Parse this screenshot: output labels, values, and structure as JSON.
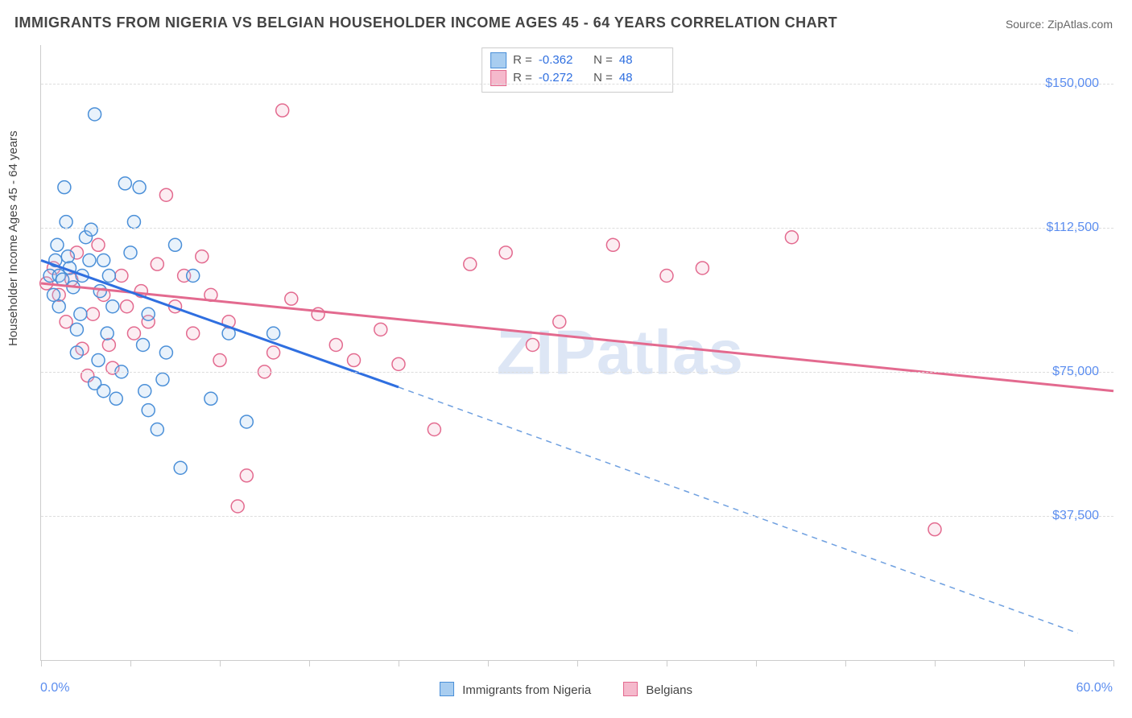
{
  "title": "IMMIGRANTS FROM NIGERIA VS BELGIAN HOUSEHOLDER INCOME AGES 45 - 64 YEARS CORRELATION CHART",
  "source": "Source: ZipAtlas.com",
  "ylabel": "Householder Income Ages 45 - 64 years",
  "watermark": "ZIPatlas",
  "chart": {
    "type": "scatter",
    "xlim": [
      0,
      60
    ],
    "ylim": [
      0,
      160000
    ],
    "x_tick_positions": [
      0,
      5,
      10,
      15,
      20,
      25,
      30,
      35,
      40,
      45,
      50,
      55,
      60
    ],
    "x_min_label": "0.0%",
    "x_max_label": "60.0%",
    "y_ticks": [
      {
        "v": 37500,
        "label": "$37,500"
      },
      {
        "v": 75000,
        "label": "$75,000"
      },
      {
        "v": 112500,
        "label": "$112,500"
      },
      {
        "v": 150000,
        "label": "$150,000"
      }
    ],
    "grid_color": "#dddddd",
    "axis_color": "#cccccc",
    "background_color": "#ffffff",
    "marker_radius": 8,
    "marker_stroke_width": 1.5,
    "marker_fill_opacity": 0.25,
    "title_fontsize": 18,
    "label_fontsize": 15,
    "tick_label_color": "#5b8def",
    "series": [
      {
        "name": "Immigrants from Nigeria",
        "color_stroke": "#4a8fd8",
        "color_fill": "#a8cdf0",
        "R": "-0.362",
        "N": "48",
        "trend": {
          "x1": 0,
          "y1": 104000,
          "x2_solid": 20,
          "y2_solid": 71000,
          "x2_dash": 58,
          "y2_dash": 7000,
          "stroke_width": 3,
          "dash_pattern": "7,6"
        },
        "points": [
          [
            0.5,
            100000
          ],
          [
            0.7,
            95000
          ],
          [
            0.8,
            104000
          ],
          [
            0.9,
            108000
          ],
          [
            1.0,
            92000
          ],
          [
            1.0,
            100000
          ],
          [
            1.2,
            99000
          ],
          [
            1.3,
            123000
          ],
          [
            1.4,
            114000
          ],
          [
            1.5,
            105000
          ],
          [
            1.6,
            102000
          ],
          [
            1.8,
            97000
          ],
          [
            2.0,
            86000
          ],
          [
            2.0,
            80000
          ],
          [
            2.2,
            90000
          ],
          [
            2.3,
            100000
          ],
          [
            2.5,
            110000
          ],
          [
            2.7,
            104000
          ],
          [
            2.8,
            112000
          ],
          [
            3.0,
            142000
          ],
          [
            3.0,
            72000
          ],
          [
            3.2,
            78000
          ],
          [
            3.3,
            96000
          ],
          [
            3.5,
            104000
          ],
          [
            3.5,
            70000
          ],
          [
            3.7,
            85000
          ],
          [
            3.8,
            100000
          ],
          [
            4.0,
            92000
          ],
          [
            4.2,
            68000
          ],
          [
            4.5,
            75000
          ],
          [
            4.7,
            124000
          ],
          [
            5.0,
            106000
          ],
          [
            5.2,
            114000
          ],
          [
            5.5,
            123000
          ],
          [
            5.7,
            82000
          ],
          [
            5.8,
            70000
          ],
          [
            6.0,
            65000
          ],
          [
            6.0,
            90000
          ],
          [
            6.5,
            60000
          ],
          [
            6.8,
            73000
          ],
          [
            7.0,
            80000
          ],
          [
            7.5,
            108000
          ],
          [
            7.8,
            50000
          ],
          [
            8.5,
            100000
          ],
          [
            9.5,
            68000
          ],
          [
            10.5,
            85000
          ],
          [
            11.5,
            62000
          ],
          [
            13.0,
            85000
          ]
        ]
      },
      {
        "name": "Belgians",
        "color_stroke": "#e36a8f",
        "color_fill": "#f5b9cc",
        "R": "-0.272",
        "N": "48",
        "trend": {
          "x1": 0,
          "y1": 98000,
          "x2_solid": 60,
          "y2_solid": 70000,
          "x2_dash": 60,
          "y2_dash": 70000,
          "stroke_width": 3,
          "dash_pattern": ""
        },
        "points": [
          [
            0.3,
            98000
          ],
          [
            0.7,
            102000
          ],
          [
            1.0,
            95000
          ],
          [
            1.4,
            88000
          ],
          [
            1.7,
            99000
          ],
          [
            2.0,
            106000
          ],
          [
            2.3,
            81000
          ],
          [
            2.6,
            74000
          ],
          [
            2.9,
            90000
          ],
          [
            3.2,
            108000
          ],
          [
            3.5,
            95000
          ],
          [
            3.8,
            82000
          ],
          [
            4.0,
            76000
          ],
          [
            4.5,
            100000
          ],
          [
            4.8,
            92000
          ],
          [
            5.2,
            85000
          ],
          [
            5.6,
            96000
          ],
          [
            6.0,
            88000
          ],
          [
            6.5,
            103000
          ],
          [
            7.0,
            121000
          ],
          [
            7.5,
            92000
          ],
          [
            8.0,
            100000
          ],
          [
            8.5,
            85000
          ],
          [
            9.0,
            105000
          ],
          [
            9.5,
            95000
          ],
          [
            10.0,
            78000
          ],
          [
            10.5,
            88000
          ],
          [
            11.0,
            40000
          ],
          [
            11.5,
            48000
          ],
          [
            12.5,
            75000
          ],
          [
            13.0,
            80000
          ],
          [
            13.5,
            143000
          ],
          [
            14.0,
            94000
          ],
          [
            15.5,
            90000
          ],
          [
            16.5,
            82000
          ],
          [
            17.5,
            78000
          ],
          [
            19.0,
            86000
          ],
          [
            20.0,
            77000
          ],
          [
            22.0,
            60000
          ],
          [
            24.0,
            103000
          ],
          [
            26.0,
            106000
          ],
          [
            27.5,
            82000
          ],
          [
            29.0,
            88000
          ],
          [
            32.0,
            108000
          ],
          [
            35.0,
            100000
          ],
          [
            37.0,
            102000
          ],
          [
            42.0,
            110000
          ],
          [
            50.0,
            34000
          ]
        ]
      }
    ],
    "legend": {
      "series1_label": "Immigrants from Nigeria",
      "series2_label": "Belgians"
    }
  }
}
